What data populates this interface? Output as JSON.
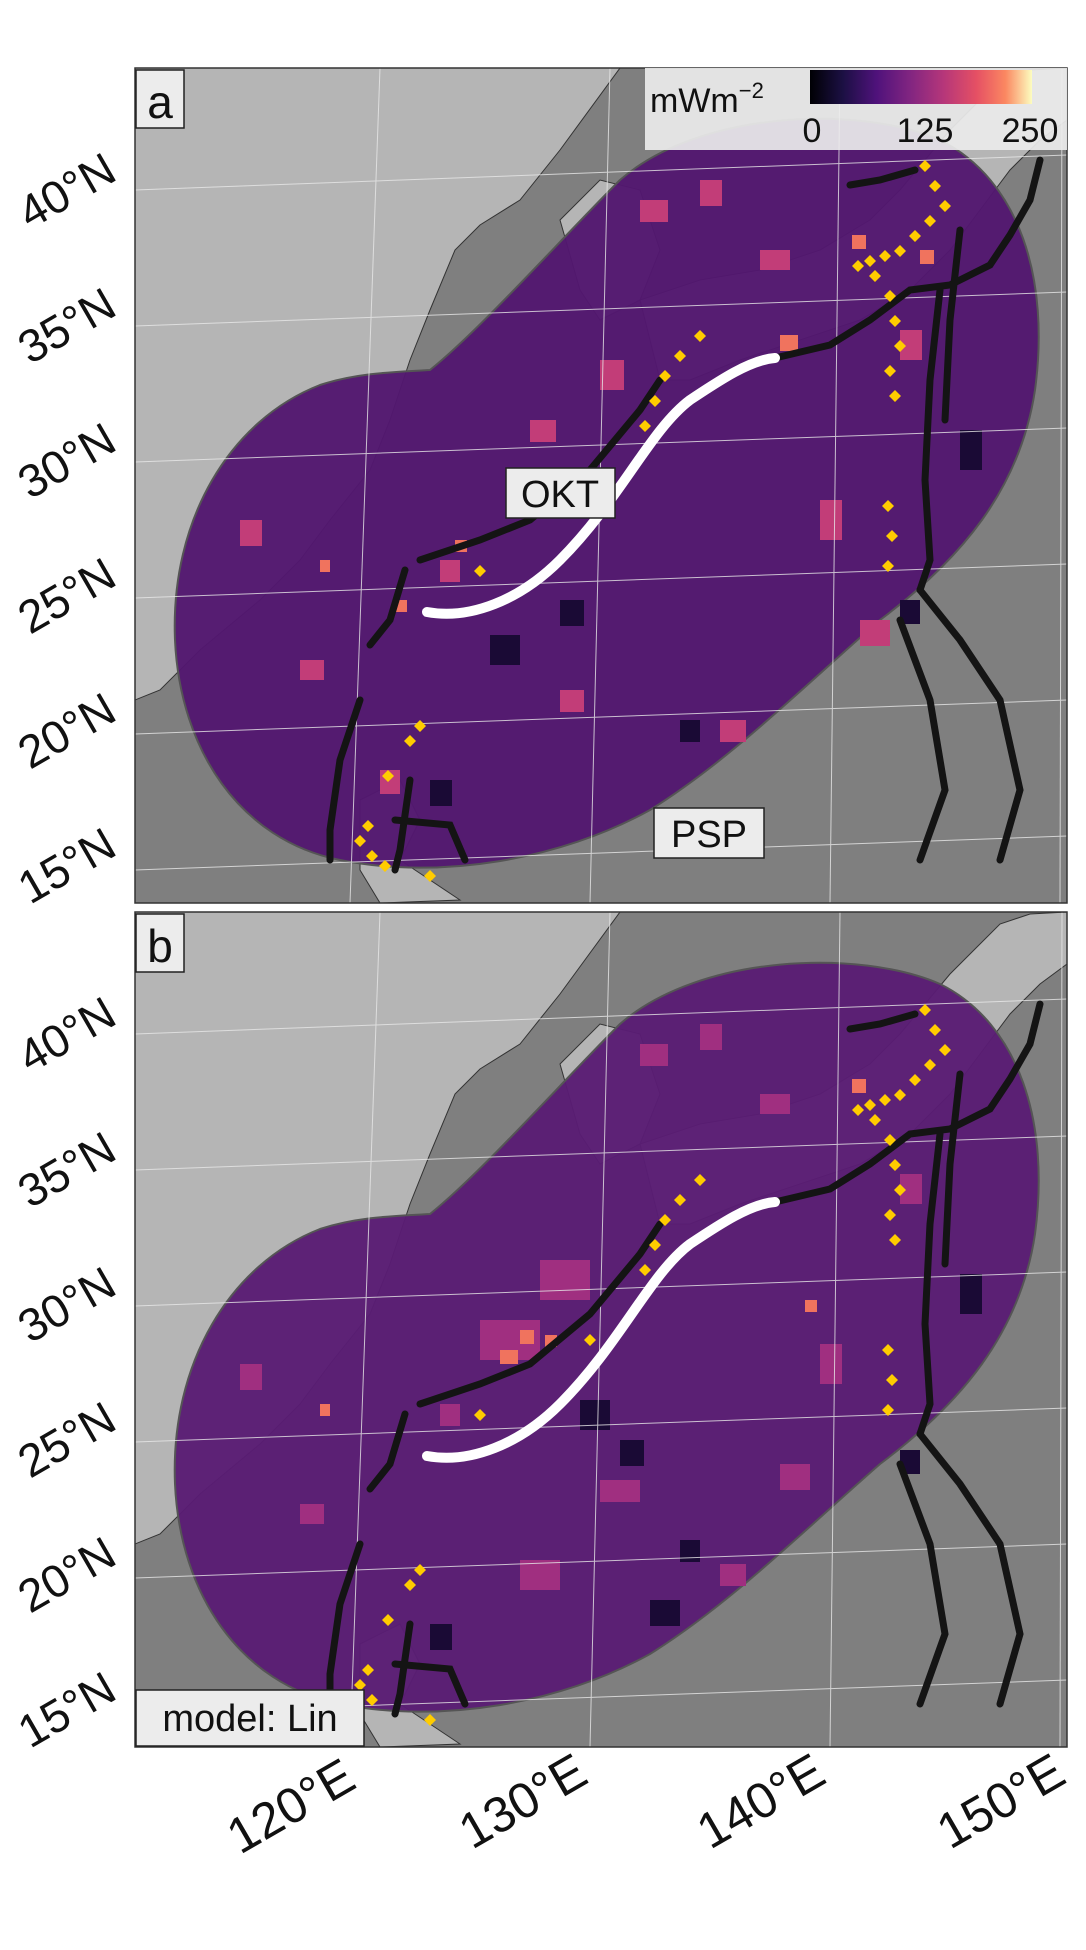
{
  "colorbar": {
    "unit_label": "mWm",
    "unit_exponent": "−2",
    "ticks": [
      "0",
      "125",
      "250"
    ],
    "range": [
      0,
      250
    ],
    "colormap": "magma"
  },
  "panels": [
    {
      "letter": "a",
      "tags": [
        "OKT",
        "PSP"
      ],
      "has_colorbar": true,
      "model_label": ""
    },
    {
      "letter": "b",
      "tags": [],
      "has_colorbar": false,
      "model_label": "model: Lin"
    }
  ],
  "lat_labels": [
    "40°N",
    "35°N",
    "30°N",
    "25°N",
    "20°N",
    "15°N"
  ],
  "lon_labels": [
    "120°E",
    "130°E",
    "140°E",
    "150°E"
  ],
  "colors": {
    "land": "#b5b5b5",
    "ocean": "#7f7f7f",
    "trench": "#141414",
    "okt_axis": "#ffffff",
    "volcano": "#ffcc00",
    "domain_outline": "#555555"
  }
}
